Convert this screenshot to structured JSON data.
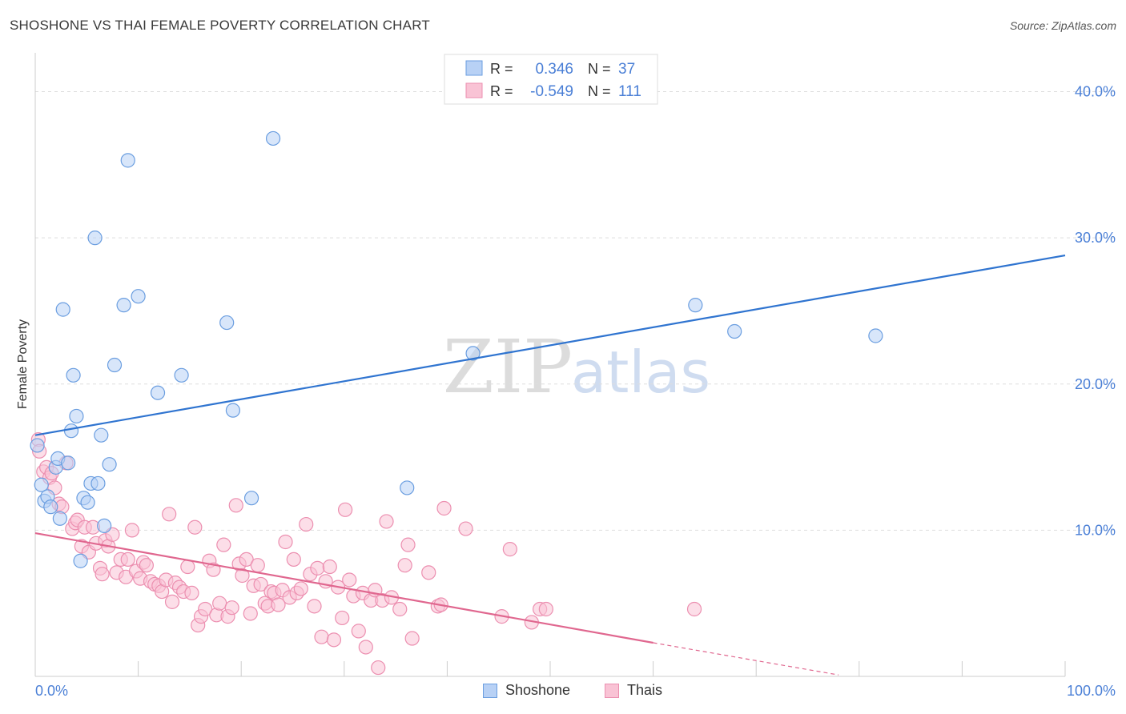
{
  "title": "SHOSHONE VS THAI FEMALE POVERTY CORRELATION CHART",
  "source": "Source: ZipAtlas.com",
  "watermark": {
    "zip": "ZIP",
    "atlas": "atlas"
  },
  "colors": {
    "shoshone_fill": "#b8d1f5",
    "shoshone_stroke": "#6b9ee0",
    "shoshone_line": "#2f74d0",
    "thais_fill": "#f9c3d5",
    "thais_stroke": "#ec8fb0",
    "thais_line": "#e0678f",
    "tick_label": "#4a7fd6",
    "grid": "#dddddd"
  },
  "stats_legend": [
    {
      "series": "Shoshone",
      "r_label": "R =",
      "r_value": "0.346",
      "n_label": "N =",
      "n_value": "37"
    },
    {
      "series": "Thais",
      "r_label": "R =",
      "r_value": "-0.549",
      "n_label": "N =",
      "n_value": "111"
    }
  ],
  "chart_data": {
    "type": "scatter",
    "title": "SHOSHONE VS THAI FEMALE POVERTY CORRELATION CHART",
    "xlabel": "",
    "ylabel": "Female Poverty",
    "xlim": [
      0,
      100
    ],
    "ylim": [
      0,
      42
    ],
    "x_tick_labels": [
      "0.0%",
      "100.0%"
    ],
    "y_ticks": [
      10,
      20,
      30,
      40
    ],
    "y_tick_labels": [
      "10.0%",
      "20.0%",
      "30.0%",
      "40.0%"
    ],
    "grid": true,
    "legend_position": "bottom",
    "series": [
      {
        "name": "Shoshone",
        "trend": {
          "x": [
            0,
            100
          ],
          "y": [
            16.5,
            28.8
          ]
        },
        "points": [
          [
            0.2,
            15.8
          ],
          [
            0.6,
            13.1
          ],
          [
            0.9,
            12.0
          ],
          [
            1.2,
            12.3
          ],
          [
            1.5,
            11.6
          ],
          [
            2.0,
            14.3
          ],
          [
            2.2,
            14.9
          ],
          [
            2.4,
            10.8
          ],
          [
            2.7,
            25.1
          ],
          [
            3.2,
            14.6
          ],
          [
            3.5,
            16.8
          ],
          [
            3.7,
            20.6
          ],
          [
            4.0,
            17.8
          ],
          [
            4.4,
            7.9
          ],
          [
            4.7,
            12.2
          ],
          [
            5.1,
            11.9
          ],
          [
            5.4,
            13.2
          ],
          [
            5.8,
            30.0
          ],
          [
            6.1,
            13.2
          ],
          [
            6.4,
            16.5
          ],
          [
            6.7,
            10.3
          ],
          [
            7.2,
            14.5
          ],
          [
            7.7,
            21.3
          ],
          [
            8.6,
            25.4
          ],
          [
            9.0,
            35.3
          ],
          [
            10.0,
            26.0
          ],
          [
            11.9,
            19.4
          ],
          [
            14.2,
            20.6
          ],
          [
            18.6,
            24.2
          ],
          [
            19.2,
            18.2
          ],
          [
            21.0,
            12.2
          ],
          [
            23.1,
            36.8
          ],
          [
            36.1,
            12.9
          ],
          [
            42.5,
            22.1
          ],
          [
            64.1,
            25.4
          ],
          [
            67.9,
            23.6
          ],
          [
            81.6,
            23.3
          ]
        ]
      },
      {
        "name": "Thais",
        "trend": {
          "x": [
            0,
            60
          ],
          "y": [
            9.8,
            2.3
          ]
        },
        "trend_dashed": {
          "x": [
            60,
            78
          ],
          "y": [
            2.3,
            0.1
          ]
        },
        "points": [
          [
            0.3,
            16.2
          ],
          [
            0.4,
            15.4
          ],
          [
            0.8,
            14.0
          ],
          [
            1.1,
            14.3
          ],
          [
            1.4,
            13.6
          ],
          [
            1.6,
            13.9
          ],
          [
            1.9,
            12.9
          ],
          [
            2.3,
            11.8
          ],
          [
            2.6,
            11.6
          ],
          [
            3.0,
            14.6
          ],
          [
            3.6,
            10.1
          ],
          [
            3.9,
            10.5
          ],
          [
            4.1,
            10.7
          ],
          [
            4.5,
            8.9
          ],
          [
            4.8,
            10.2
          ],
          [
            5.2,
            8.5
          ],
          [
            5.6,
            10.2
          ],
          [
            5.9,
            9.1
          ],
          [
            6.3,
            7.4
          ],
          [
            6.5,
            7.0
          ],
          [
            6.8,
            9.3
          ],
          [
            7.1,
            8.9
          ],
          [
            7.5,
            9.7
          ],
          [
            7.9,
            7.1
          ],
          [
            8.3,
            8.0
          ],
          [
            8.8,
            6.8
          ],
          [
            9.0,
            8.0
          ],
          [
            9.4,
            10.0
          ],
          [
            9.8,
            7.2
          ],
          [
            10.2,
            6.7
          ],
          [
            10.5,
            7.8
          ],
          [
            10.8,
            7.6
          ],
          [
            11.2,
            6.5
          ],
          [
            11.6,
            6.3
          ],
          [
            12.0,
            6.2
          ],
          [
            12.3,
            5.8
          ],
          [
            12.7,
            6.6
          ],
          [
            13.0,
            11.1
          ],
          [
            13.3,
            5.1
          ],
          [
            13.6,
            6.4
          ],
          [
            14.0,
            6.1
          ],
          [
            14.4,
            5.8
          ],
          [
            14.8,
            7.5
          ],
          [
            15.2,
            5.7
          ],
          [
            15.5,
            10.2
          ],
          [
            15.8,
            3.5
          ],
          [
            16.1,
            4.1
          ],
          [
            16.5,
            4.6
          ],
          [
            16.9,
            7.9
          ],
          [
            17.3,
            7.3
          ],
          [
            17.6,
            4.2
          ],
          [
            17.9,
            5.0
          ],
          [
            18.3,
            9.0
          ],
          [
            18.7,
            4.1
          ],
          [
            19.1,
            4.7
          ],
          [
            19.5,
            11.7
          ],
          [
            19.8,
            7.7
          ],
          [
            20.1,
            6.9
          ],
          [
            20.5,
            8.0
          ],
          [
            20.9,
            4.3
          ],
          [
            21.2,
            6.2
          ],
          [
            21.6,
            7.6
          ],
          [
            21.9,
            6.3
          ],
          [
            22.3,
            5.0
          ],
          [
            22.6,
            4.8
          ],
          [
            22.9,
            5.8
          ],
          [
            23.2,
            5.7
          ],
          [
            23.6,
            4.9
          ],
          [
            24.0,
            5.9
          ],
          [
            24.3,
            9.2
          ],
          [
            24.7,
            5.4
          ],
          [
            25.1,
            8.0
          ],
          [
            25.4,
            5.7
          ],
          [
            25.8,
            6.0
          ],
          [
            26.3,
            10.4
          ],
          [
            26.7,
            7.0
          ],
          [
            27.1,
            4.8
          ],
          [
            27.4,
            7.4
          ],
          [
            27.8,
            2.7
          ],
          [
            28.2,
            6.5
          ],
          [
            28.6,
            7.5
          ],
          [
            29.0,
            2.5
          ],
          [
            29.4,
            6.1
          ],
          [
            29.8,
            4.0
          ],
          [
            30.1,
            11.4
          ],
          [
            30.5,
            6.6
          ],
          [
            30.9,
            5.5
          ],
          [
            31.4,
            3.1
          ],
          [
            31.8,
            5.7
          ],
          [
            32.1,
            2.0
          ],
          [
            32.6,
            5.2
          ],
          [
            33.0,
            5.9
          ],
          [
            33.3,
            0.6
          ],
          [
            33.7,
            5.2
          ],
          [
            34.1,
            10.6
          ],
          [
            34.6,
            5.4
          ],
          [
            35.4,
            4.6
          ],
          [
            35.9,
            7.6
          ],
          [
            36.2,
            9.0
          ],
          [
            36.6,
            2.6
          ],
          [
            38.2,
            7.1
          ],
          [
            39.1,
            4.8
          ],
          [
            39.4,
            4.9
          ],
          [
            39.7,
            11.5
          ],
          [
            41.8,
            10.1
          ],
          [
            45.3,
            4.1
          ],
          [
            46.1,
            8.7
          ],
          [
            48.2,
            3.7
          ],
          [
            49.0,
            4.6
          ],
          [
            49.6,
            4.6
          ],
          [
            64.0,
            4.6
          ]
        ]
      }
    ]
  }
}
